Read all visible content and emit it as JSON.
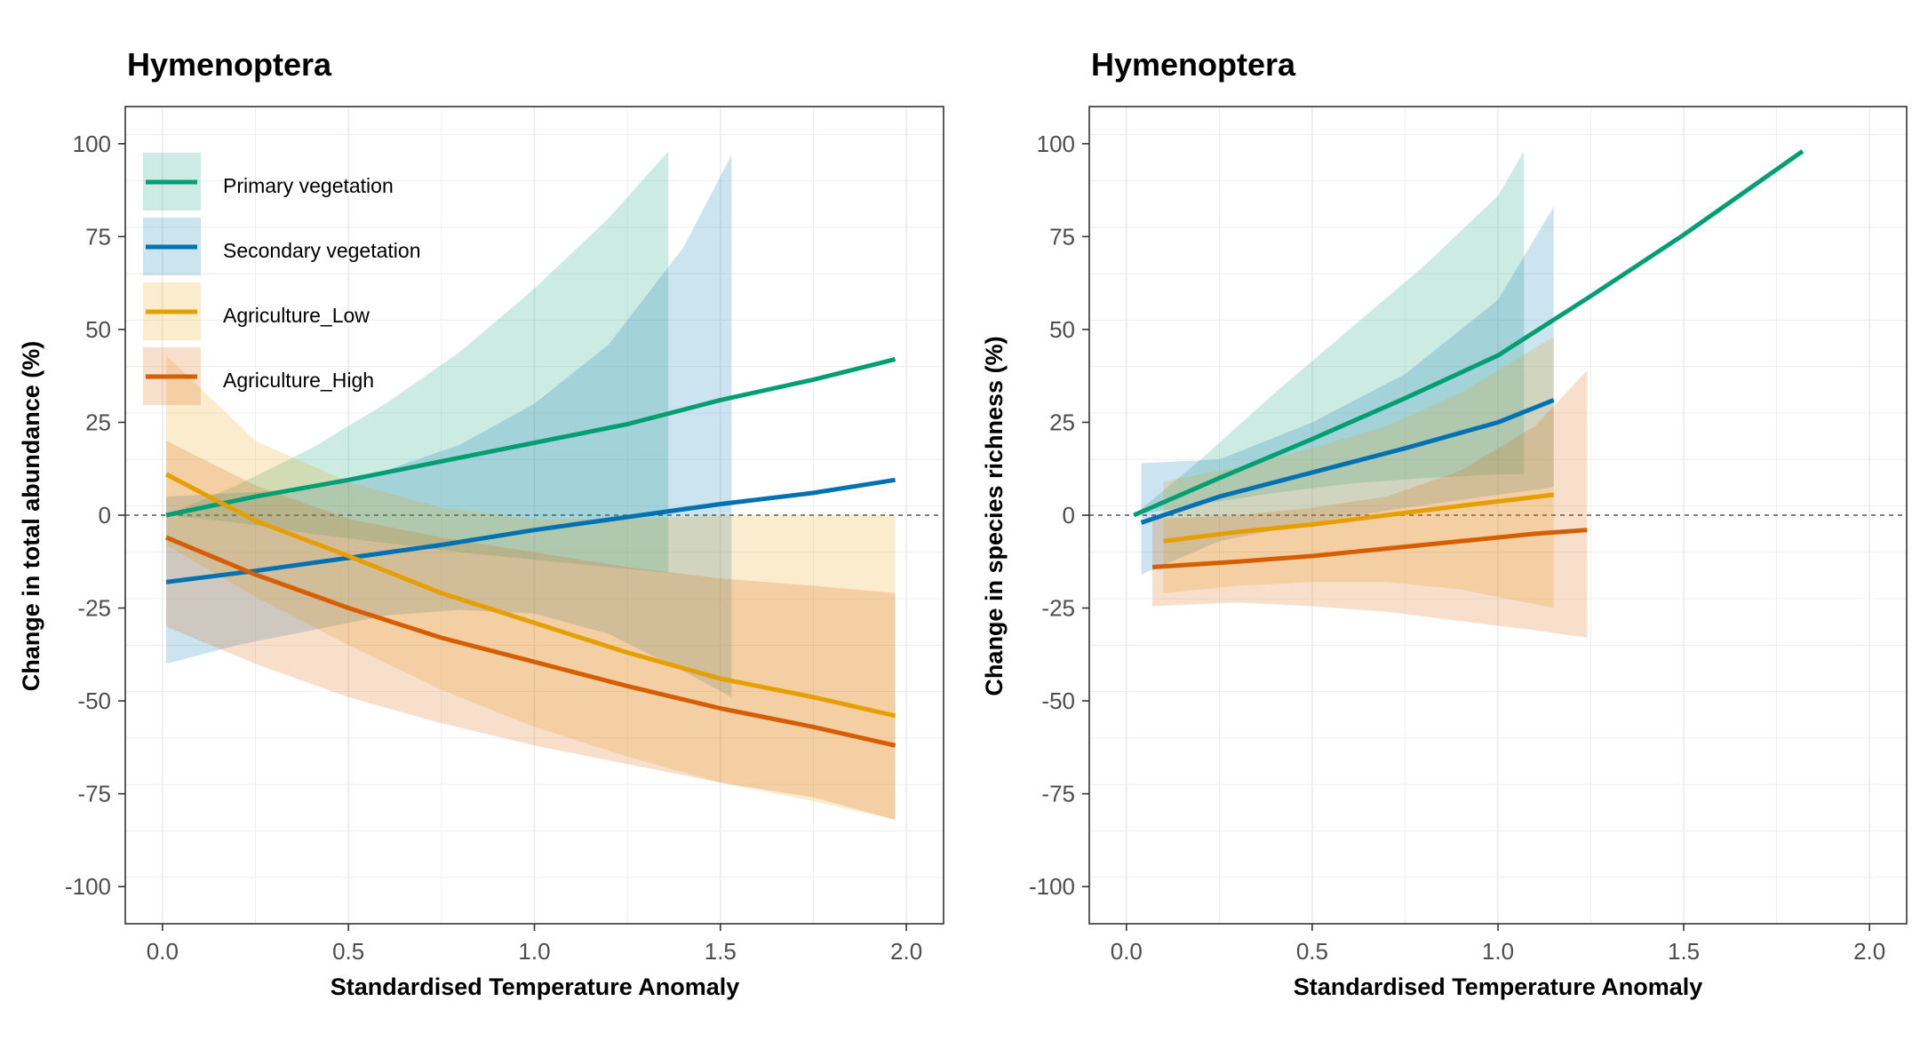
{
  "colors": {
    "primary_vegetation": "#009E73",
    "secondary_vegetation": "#0072B2",
    "agriculture_low": "#E69F00",
    "agriculture_high": "#D55E00",
    "grid": "#ebebeb",
    "reference_line": "#555555"
  },
  "legend": {
    "placement": "top-left inside left panel",
    "entries": [
      "Primary vegetation",
      "Secondary vegetation",
      "Agriculture_Low",
      "Agriculture_High"
    ]
  },
  "chart_data": [
    {
      "type": "line",
      "title": "Hymenoptera",
      "xlabel": "Standardised Temperature Anomaly",
      "ylabel": "Change in total abundance (%)",
      "xlim": [
        -0.1,
        2.1
      ],
      "ylim": [
        -110,
        110
      ],
      "xticks": [
        "0.0",
        "0.5",
        "1.0",
        "1.5",
        "2.0"
      ],
      "yticks": [
        "100",
        "75",
        "50",
        "25",
        "0",
        "-25",
        "-50",
        "-75",
        "-100"
      ],
      "grid": true,
      "reference_line_y": 0,
      "series": [
        {
          "name": "Primary vegetation",
          "x": [
            0.01,
            0.25,
            0.5,
            0.75,
            1.0,
            1.25,
            1.5,
            1.75,
            1.97
          ],
          "y": [
            0,
            5,
            9.5,
            14.5,
            19.5,
            24.5,
            31,
            36.5,
            42
          ],
          "ci_x": [
            0.01,
            0.2,
            0.4,
            0.6,
            0.8,
            1.0,
            1.2,
            1.36
          ],
          "ci_lower": [
            0,
            -2,
            -5,
            -7.5,
            -10,
            -12,
            -14,
            -15.5
          ],
          "ci_upper": [
            0,
            8,
            18,
            30,
            44,
            61,
            80,
            98
          ]
        },
        {
          "name": "Secondary vegetation",
          "x": [
            0.01,
            0.25,
            0.5,
            0.75,
            1.0,
            1.25,
            1.5,
            1.75,
            1.97
          ],
          "y": [
            -18,
            -15,
            -11.5,
            -8,
            -4,
            -0.5,
            3,
            6,
            9.5
          ],
          "ci_x": [
            0.01,
            0.2,
            0.4,
            0.6,
            0.8,
            1.0,
            1.2,
            1.4,
            1.53
          ],
          "ci_lower": [
            -40,
            -35,
            -31,
            -27,
            -25.5,
            -26.5,
            -32,
            -42,
            -49
          ],
          "ci_upper": [
            5,
            6,
            7,
            12,
            19,
            30,
            46,
            72,
            97
          ]
        },
        {
          "name": "Agriculture_Low",
          "x": [
            0.01,
            0.25,
            0.5,
            0.75,
            1.0,
            1.25,
            1.5,
            1.75,
            1.97
          ],
          "y": [
            11,
            -1.5,
            -11,
            -21,
            -29,
            -37,
            -44,
            -49,
            -54
          ],
          "ci_x": [
            0.01,
            0.25,
            0.5,
            0.75,
            1.0,
            1.25,
            1.5,
            1.75,
            1.97
          ],
          "ci_lower": [
            -8,
            -22,
            -35,
            -47,
            -57,
            -65,
            -72,
            -77,
            -82
          ],
          "ci_upper": [
            43,
            20,
            9,
            2,
            -1,
            -1,
            0,
            0,
            0
          ]
        },
        {
          "name": "Agriculture_High",
          "x": [
            0.01,
            0.25,
            0.5,
            0.75,
            1.0,
            1.25,
            1.5,
            1.75,
            1.97
          ],
          "y": [
            -6,
            -16,
            -25,
            -33,
            -39.5,
            -46,
            -52,
            -57,
            -62
          ],
          "ci_x": [
            0.01,
            0.25,
            0.5,
            0.75,
            1.0,
            1.25,
            1.5,
            1.75,
            1.97
          ],
          "ci_lower": [
            -30,
            -40,
            -49,
            -56,
            -62,
            -67,
            -72,
            -76,
            -82
          ],
          "ci_upper": [
            20,
            8,
            -1,
            -6,
            -10,
            -14,
            -17,
            -19,
            -21
          ]
        }
      ]
    },
    {
      "type": "line",
      "title": "Hymenoptera",
      "xlabel": "Standardised Temperature Anomaly",
      "ylabel": "Change in species richness (%)",
      "xlim": [
        -0.1,
        2.1
      ],
      "ylim": [
        -110,
        110
      ],
      "xticks": [
        "0.0",
        "0.5",
        "1.0",
        "1.5",
        "2.0"
      ],
      "yticks": [
        "100",
        "75",
        "50",
        "25",
        "0",
        "-25",
        "-50",
        "-75",
        "-100"
      ],
      "grid": true,
      "reference_line_y": 0,
      "series": [
        {
          "name": "Primary vegetation",
          "x": [
            0.02,
            0.25,
            0.5,
            0.75,
            1.0,
            1.25,
            1.5,
            1.82
          ],
          "y": [
            0,
            10,
            20.5,
            31.5,
            43,
            59,
            75.5,
            98
          ],
          "ci_x": [
            0.02,
            0.2,
            0.4,
            0.6,
            0.8,
            1.0,
            1.07
          ],
          "ci_lower": [
            0,
            3,
            6,
            8.5,
            10,
            11,
            11
          ],
          "ci_upper": [
            0,
            15,
            33,
            50,
            67,
            86,
            98
          ]
        },
        {
          "name": "Secondary vegetation",
          "x": [
            0.04,
            0.25,
            0.5,
            0.75,
            1.0,
            1.15
          ],
          "y": [
            -2,
            5,
            11.5,
            18,
            25,
            31
          ],
          "ci_x": [
            0.04,
            0.25,
            0.5,
            0.75,
            1.0,
            1.15
          ],
          "ci_lower": [
            -16,
            -7,
            -2,
            2,
            5.5,
            7.5
          ],
          "ci_upper": [
            14,
            15,
            25,
            38,
            58,
            83
          ]
        },
        {
          "name": "Agriculture_Low",
          "x": [
            0.1,
            0.3,
            0.5,
            0.7,
            0.9,
            1.15
          ],
          "y": [
            -7,
            -4.5,
            -2.5,
            0,
            2.5,
            5.5
          ],
          "ci_x": [
            0.1,
            0.3,
            0.5,
            0.7,
            0.9,
            1.15
          ],
          "ci_lower": [
            -21,
            -19,
            -18,
            -18,
            -20,
            -25
          ],
          "ci_upper": [
            9,
            13,
            18,
            24,
            33,
            48
          ]
        },
        {
          "name": "Agriculture_High",
          "x": [
            0.07,
            0.3,
            0.5,
            0.7,
            0.9,
            1.1,
            1.24
          ],
          "y": [
            -14,
            -12.5,
            -11,
            -9,
            -7,
            -5,
            -4
          ],
          "ci_x": [
            0.07,
            0.3,
            0.5,
            0.7,
            0.9,
            1.1,
            1.24
          ],
          "ci_lower": [
            -24.5,
            -23.5,
            -24.5,
            -26,
            -28.5,
            -31,
            -33
          ],
          "ci_upper": [
            -1,
            0,
            2,
            5,
            12,
            24,
            39
          ]
        }
      ]
    }
  ]
}
